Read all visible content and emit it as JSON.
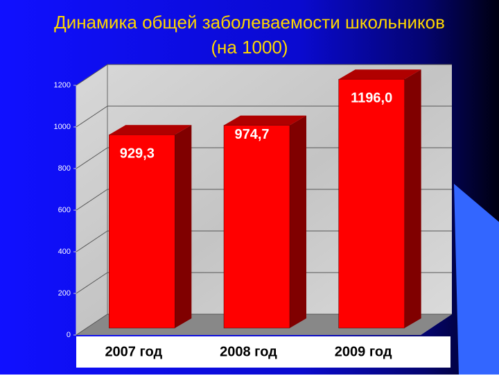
{
  "chart_data": {
    "type": "bar3d",
    "title": "Динамика общей заболеваемости школьников",
    "subtitle": "(на 1000)",
    "categories": [
      "2007 год",
      "2008 год",
      "2009 год"
    ],
    "values": [
      929.3,
      974.7,
      1196.0
    ],
    "value_labels": [
      "929,3",
      "974,7",
      "1196,0"
    ],
    "color": "#ff0000",
    "ylim": [
      0,
      1200
    ],
    "yticks": [
      0,
      200,
      400,
      600,
      800,
      1000,
      1200
    ],
    "grid": true
  }
}
